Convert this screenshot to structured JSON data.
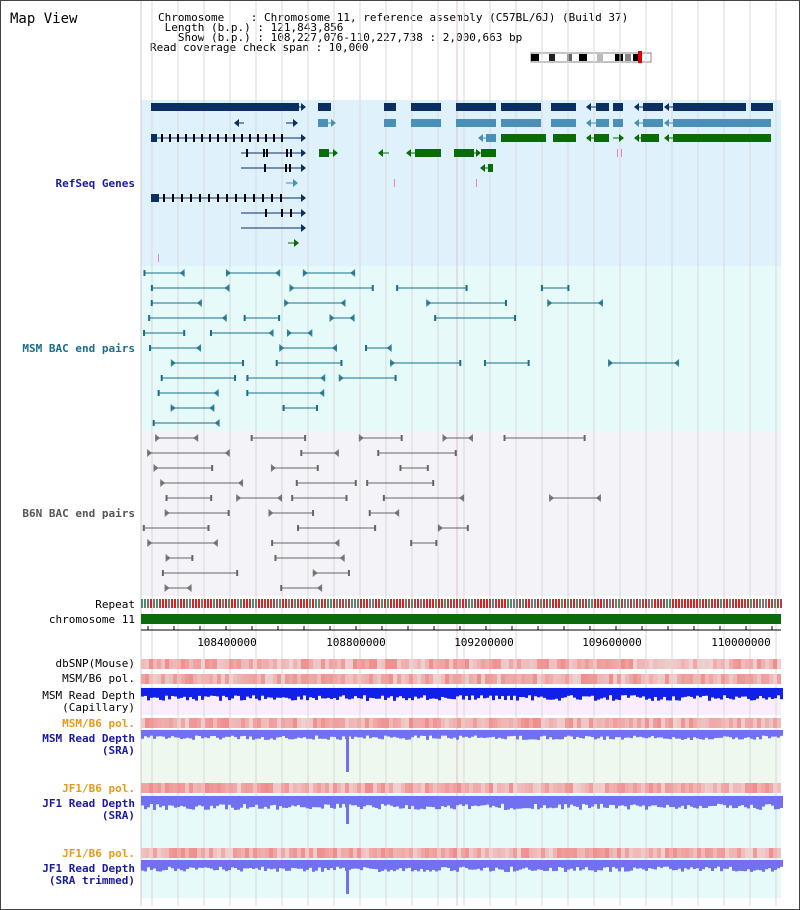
{
  "title": "Map View",
  "info": {
    "line1": "Chromosome    : Chromosome 11, reference assembly (C57BL/6J) (Build 37)",
    "line2": " Length (b.p.) : 121,843,856",
    "line3": "   Show (b.p.) : 108,227,076-110,227,738 : 2,000,663 bp",
    "line4": "Read coverage check span : 10,000"
  },
  "tracks": {
    "refseq": "RefSeq Genes",
    "msm_bac": "MSM BAC end pairs",
    "b6n_bac": "B6N BAC end pairs",
    "repeat": "Repeat",
    "chrom": "chromosome 11",
    "dbsnp": "dbSNP(Mouse)",
    "msm_pol1": "MSM/B6 pol.",
    "msm_depth_cap_1": "MSM Read Depth",
    "msm_depth_cap_2": "(Capillary)",
    "msm_pol2": "MSM/B6 pol.",
    "msm_depth_sra_1": "MSM Read Depth",
    "msm_depth_sra_2": "(SRA)",
    "jf1_pol1": "JF1/B6 pol.",
    "jf1_depth_sra_1": "JF1 Read Depth",
    "jf1_depth_sra_2": "(SRA)",
    "jf1_pol2": "JF1/B6 pol.",
    "jf1_depth_trim_1": "JF1 Read Depth",
    "jf1_depth_trim_2": "(SRA trimmed)"
  },
  "axis_ticks": [
    "108400000",
    "108800000",
    "109200000",
    "109600000",
    "110000000"
  ],
  "colors": {
    "refseq_dark": "#0b2f62",
    "refseq_mid": "#4a8fb7",
    "refseq_green": "#0b6b0b",
    "msm_line": "#1a6e8a",
    "b6n_line": "#666666",
    "chrom_green": "#0b6b0b",
    "pol_red": "#f05050",
    "depth_blue": "#1020e8",
    "depth_light": "#7070f0",
    "orange_label": "#e69a1a",
    "blue_label": "#1a1aa0"
  }
}
